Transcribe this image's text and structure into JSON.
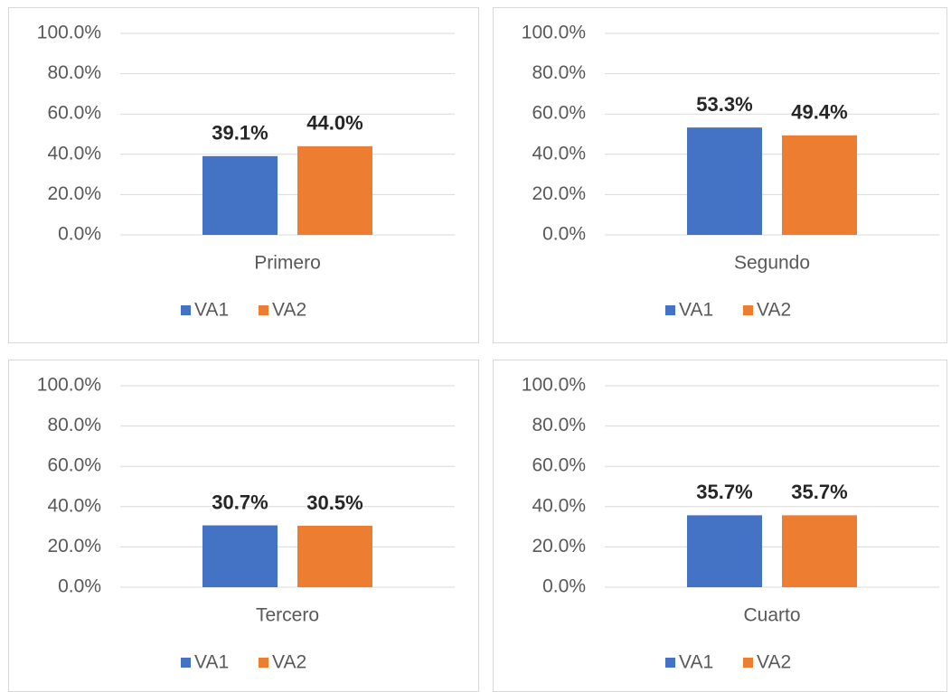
{
  "chart_data": [
    {
      "type": "bar",
      "categories": [
        "Primero"
      ],
      "series": [
        {
          "name": "VA1",
          "color": "#4472c4",
          "values": [
            39.1
          ],
          "value_labels": [
            "39.1%"
          ]
        },
        {
          "name": "VA2",
          "color": "#ed7d31",
          "values": [
            44.0
          ],
          "value_labels": [
            "44.0%"
          ]
        }
      ],
      "ylim": [
        0,
        100
      ],
      "yticks": [
        {
          "value": 0,
          "label": "0.0%"
        },
        {
          "value": 20,
          "label": "20.0%"
        },
        {
          "value": 40,
          "label": "40.0%"
        },
        {
          "value": 60,
          "label": "60.0%"
        },
        {
          "value": 80,
          "label": "80.0%"
        },
        {
          "value": 100,
          "label": "100.0%"
        }
      ],
      "grid": true,
      "legend": "bottom"
    },
    {
      "type": "bar",
      "categories": [
        "Segundo"
      ],
      "series": [
        {
          "name": "VA1",
          "color": "#4472c4",
          "values": [
            53.3
          ],
          "value_labels": [
            "53.3%"
          ]
        },
        {
          "name": "VA2",
          "color": "#ed7d31",
          "values": [
            49.4
          ],
          "value_labels": [
            "49.4%"
          ]
        }
      ],
      "ylim": [
        0,
        100
      ],
      "yticks": [
        {
          "value": 0,
          "label": "0.0%"
        },
        {
          "value": 20,
          "label": "20.0%"
        },
        {
          "value": 40,
          "label": "40.0%"
        },
        {
          "value": 60,
          "label": "60.0%"
        },
        {
          "value": 80,
          "label": "80.0%"
        },
        {
          "value": 100,
          "label": "100.0%"
        }
      ],
      "grid": true,
      "legend": "bottom"
    },
    {
      "type": "bar",
      "categories": [
        "Tercero"
      ],
      "series": [
        {
          "name": "VA1",
          "color": "#4472c4",
          "values": [
            30.7
          ],
          "value_labels": [
            "30.7%"
          ]
        },
        {
          "name": "VA2",
          "color": "#ed7d31",
          "values": [
            30.5
          ],
          "value_labels": [
            "30.5%"
          ]
        }
      ],
      "ylim": [
        0,
        100
      ],
      "yticks": [
        {
          "value": 0,
          "label": "0.0%"
        },
        {
          "value": 20,
          "label": "20.0%"
        },
        {
          "value": 40,
          "label": "40.0%"
        },
        {
          "value": 60,
          "label": "60.0%"
        },
        {
          "value": 80,
          "label": "80.0%"
        },
        {
          "value": 100,
          "label": "100.0%"
        }
      ],
      "grid": true,
      "legend": "bottom"
    },
    {
      "type": "bar",
      "categories": [
        "Cuarto"
      ],
      "series": [
        {
          "name": "VA1",
          "color": "#4472c4",
          "values": [
            35.7
          ],
          "value_labels": [
            "35.7%"
          ]
        },
        {
          "name": "VA2",
          "color": "#ed7d31",
          "values": [
            35.7
          ],
          "value_labels": [
            "35.7%"
          ]
        }
      ],
      "ylim": [
        0,
        100
      ],
      "yticks": [
        {
          "value": 0,
          "label": "0.0%"
        },
        {
          "value": 20,
          "label": "20.0%"
        },
        {
          "value": 40,
          "label": "40.0%"
        },
        {
          "value": 60,
          "label": "60.0%"
        },
        {
          "value": 80,
          "label": "80.0%"
        },
        {
          "value": 100,
          "label": "100.0%"
        }
      ],
      "grid": true,
      "legend": "bottom"
    }
  ]
}
